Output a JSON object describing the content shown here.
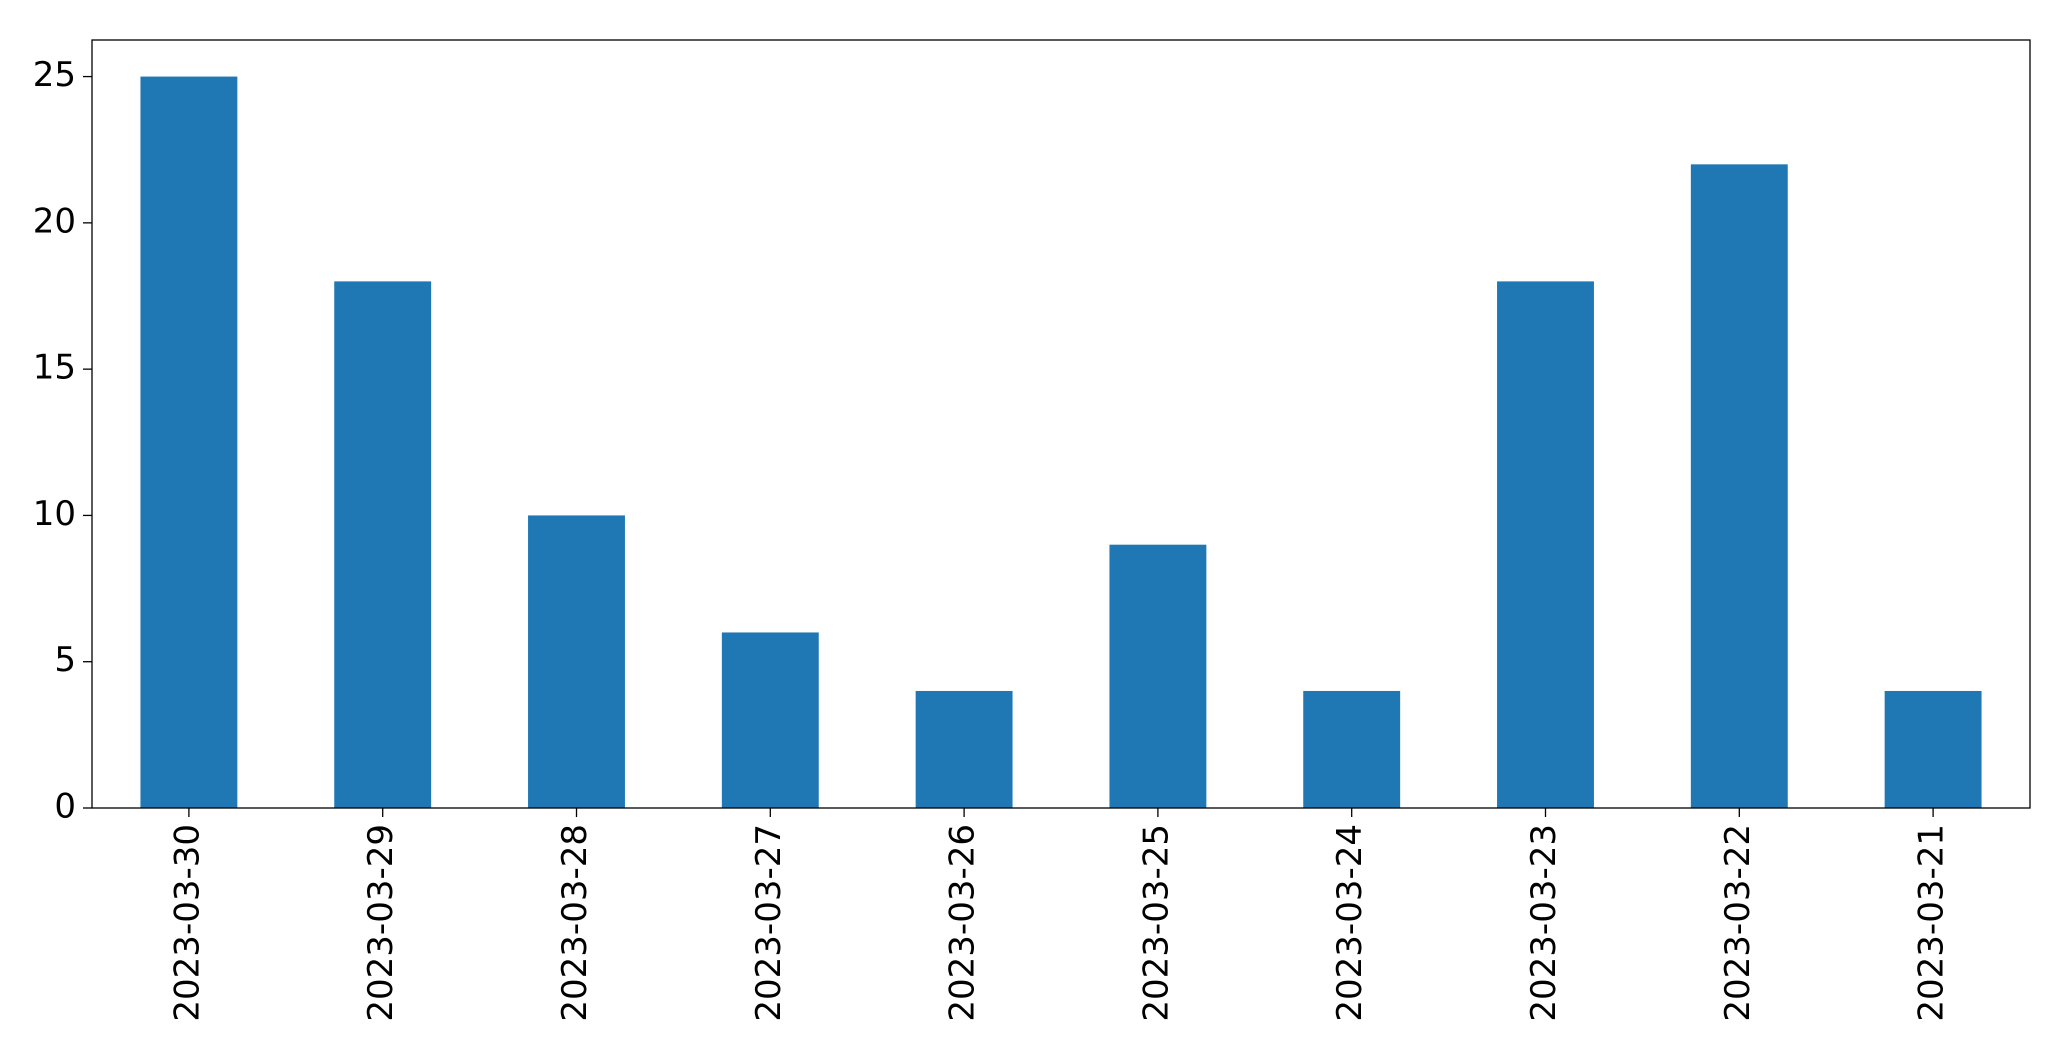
{
  "chart_data": {
    "type": "bar",
    "categories": [
      "2023-03-30",
      "2023-03-29",
      "2023-03-28",
      "2023-03-27",
      "2023-03-26",
      "2023-03-25",
      "2023-03-24",
      "2023-03-23",
      "2023-03-22",
      "2023-03-21"
    ],
    "values": [
      25,
      18,
      10,
      6,
      4,
      9,
      4,
      18,
      22,
      4
    ],
    "color": "#1f77b4",
    "ylim": [
      0,
      26.25
    ],
    "yticks": [
      0,
      5,
      10,
      15,
      20,
      25
    ],
    "grid": false
  }
}
